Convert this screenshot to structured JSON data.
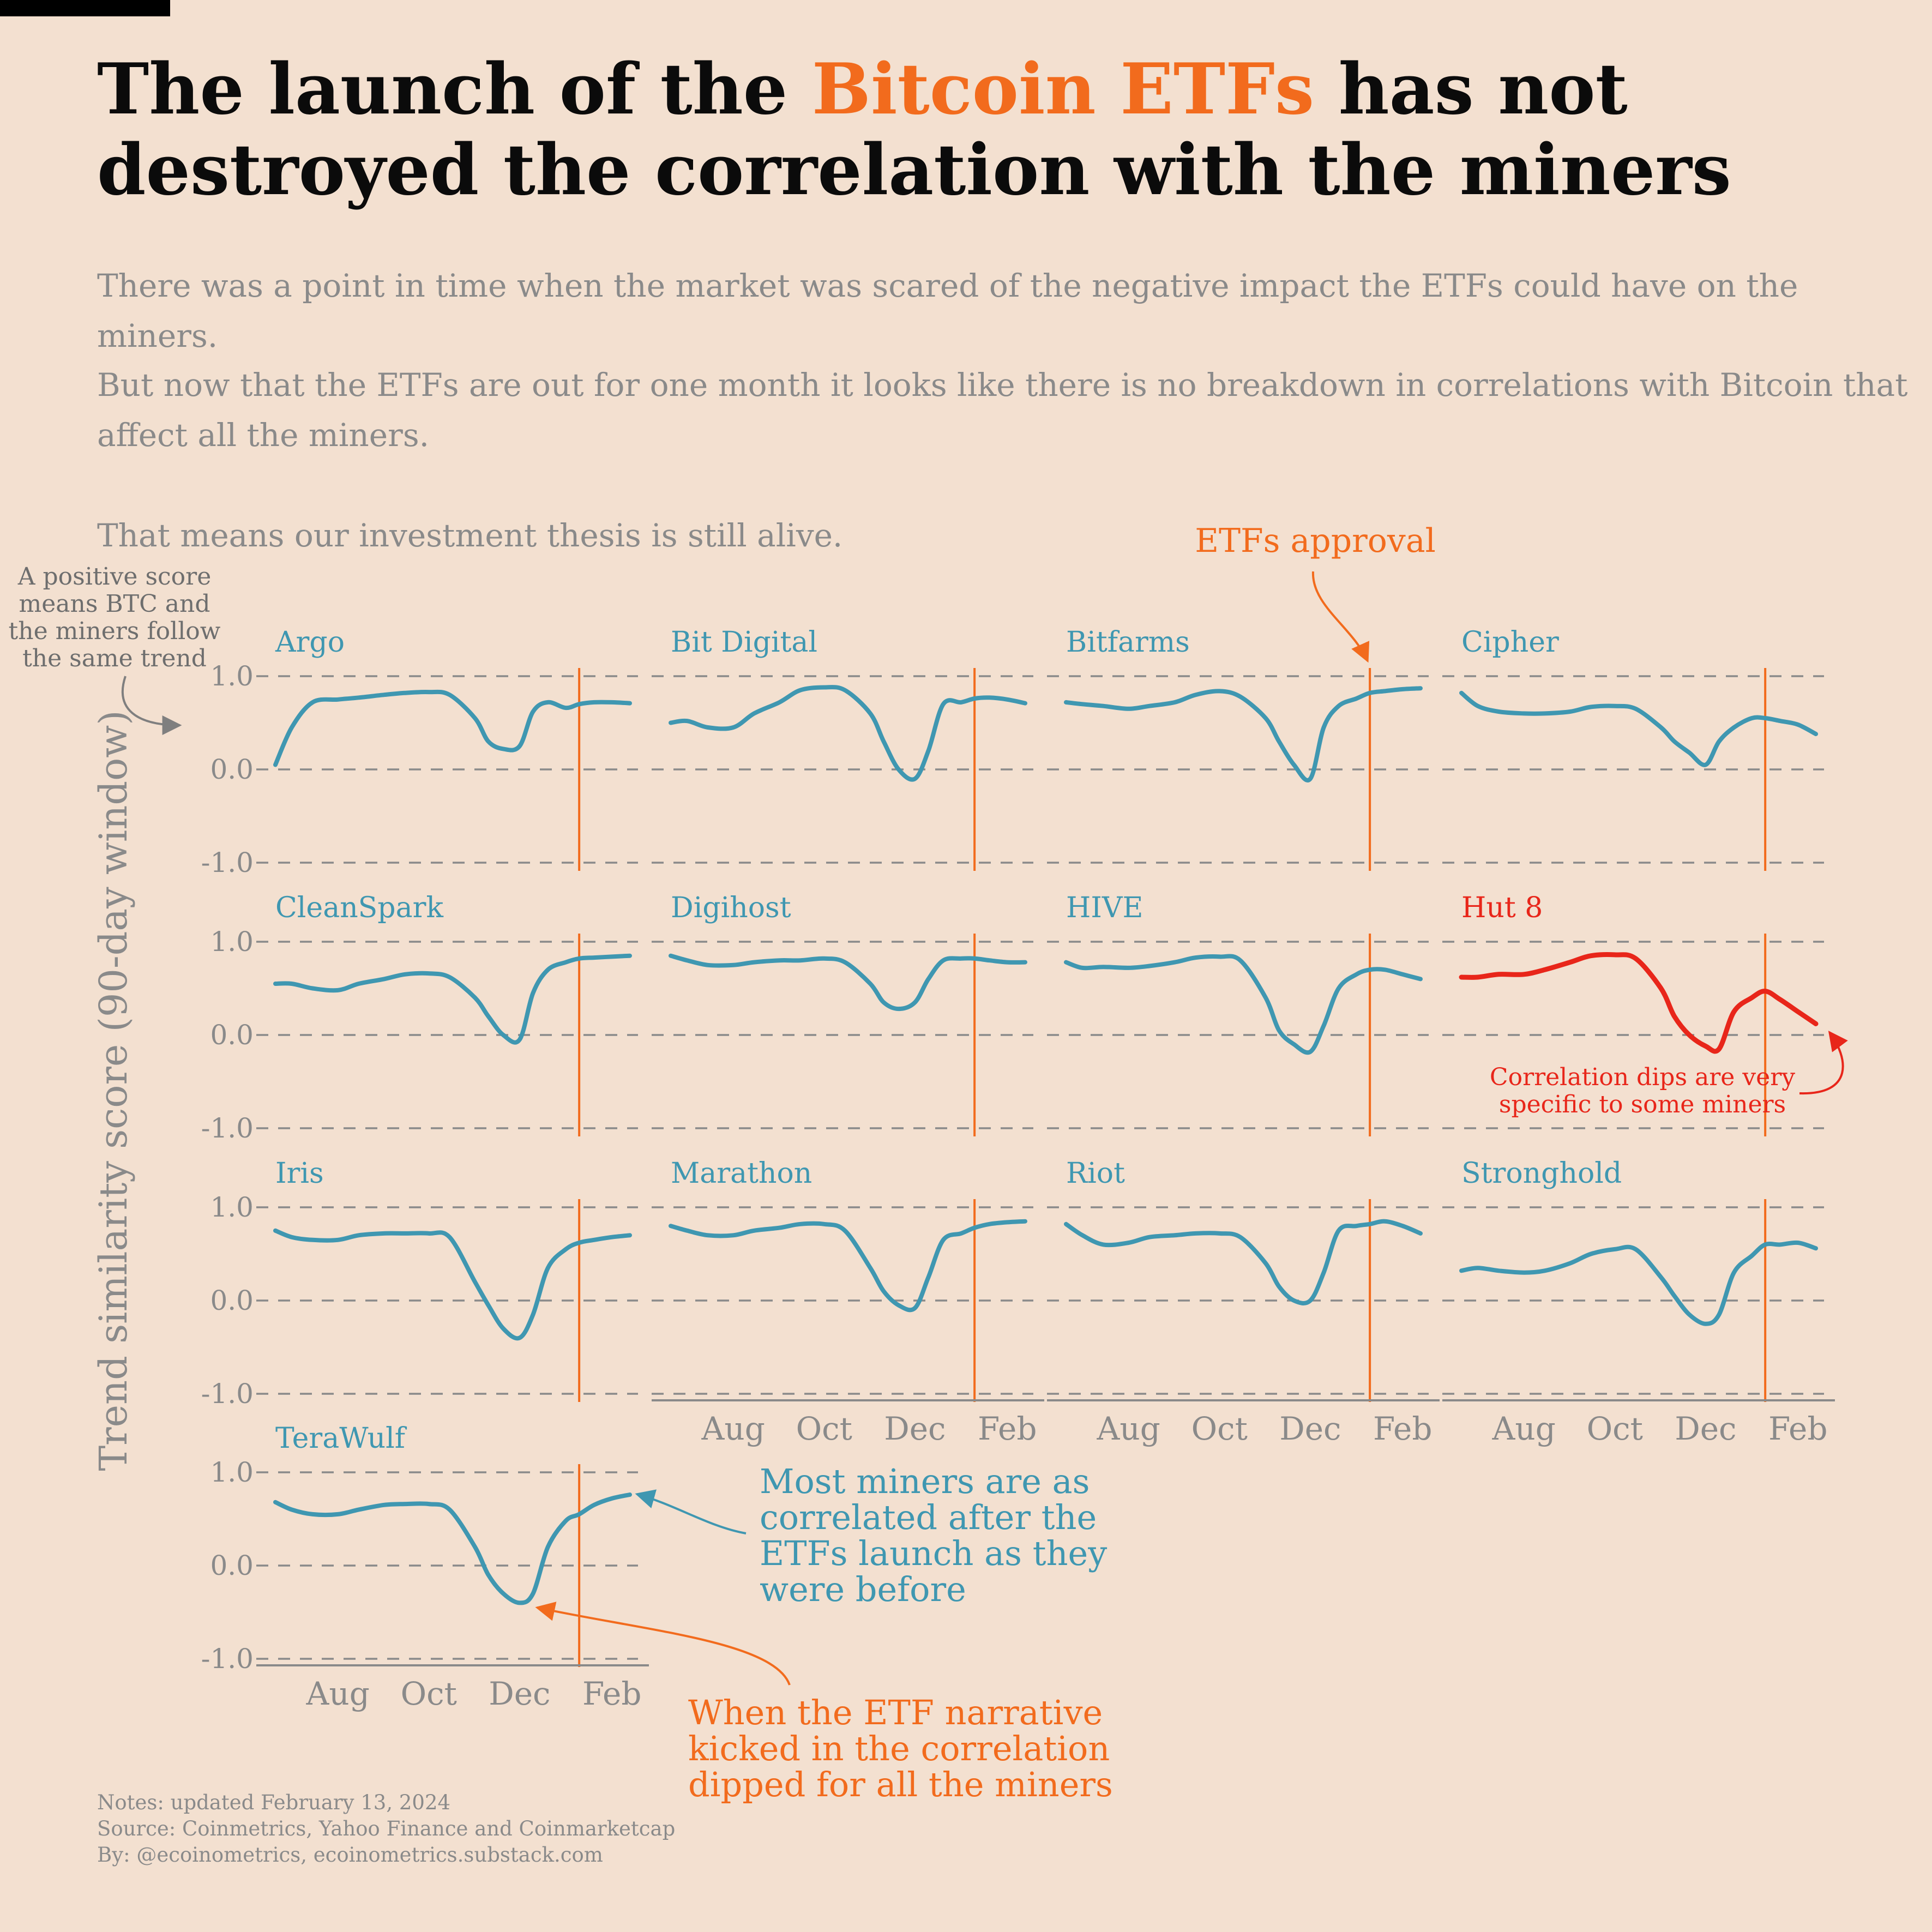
{
  "title": {
    "before": "The launch of the ",
    "highlight": "Bitcoin ETFs",
    "after": " has not destroyed the correlation with the miners"
  },
  "subtitle": {
    "p1": "There was a point in time when the market was scared of the negative impact the ETFs could have on the miners.",
    "p2": "But now that the ETFs are out for one month it looks like there is no breakdown in correlations with Bitcoin that affect all the miners.",
    "p3": "That means our investment thesis is still alive."
  },
  "notes": {
    "line1": "Notes: updated February 13, 2024",
    "line2": "Source: Coinmetrics, Yahoo Finance and Coinmarketcap",
    "line3": "By: @ecoinometrics, ecoinometrics.substack.com"
  },
  "colors": {
    "series": "#3f97b1",
    "highlight_series": "#e8261a",
    "accent": "#f26b1d",
    "grid": "#8a8a8a",
    "text_muted": "#8a8a8a",
    "background": "#f3e0d0"
  },
  "chart_data": {
    "type": "line",
    "layout": "small-multiples",
    "ylabel": "Trend similarity score (90-day window)",
    "ylim": [
      -1.0,
      1.0
    ],
    "yticks": [
      -1.0,
      0.0,
      1.0
    ],
    "ytick_labels": [
      "-1.0",
      "0.0",
      "1.0"
    ],
    "xlim": [
      "2023-06-20",
      "2024-02-13"
    ],
    "xticks": [
      "2023-08-01",
      "2023-10-01",
      "2023-12-01",
      "2024-02-01"
    ],
    "xtick_labels": [
      "Aug",
      "Oct",
      "Dec",
      "Feb"
    ],
    "grid": true,
    "event_marker": {
      "date": "2024-01-10",
      "label": "ETFs approval"
    },
    "x": [
      "2023-06-20",
      "2023-07-01",
      "2023-07-15",
      "2023-08-01",
      "2023-08-15",
      "2023-09-01",
      "2023-09-15",
      "2023-10-01",
      "2023-10-15",
      "2023-11-01",
      "2023-11-10",
      "2023-11-20",
      "2023-12-01",
      "2023-12-10",
      "2023-12-20",
      "2024-01-01",
      "2024-01-10",
      "2024-01-20",
      "2024-02-01",
      "2024-02-13"
    ],
    "series": [
      {
        "name": "Argo",
        "values": [
          0.05,
          0.45,
          0.72,
          0.75,
          0.77,
          0.8,
          0.82,
          0.83,
          0.8,
          0.55,
          0.3,
          0.22,
          0.25,
          0.62,
          0.72,
          0.66,
          0.7,
          0.72,
          0.72,
          0.71
        ]
      },
      {
        "name": "Bit Digital",
        "values": [
          0.5,
          0.52,
          0.45,
          0.45,
          0.6,
          0.72,
          0.85,
          0.88,
          0.85,
          0.6,
          0.3,
          0.0,
          -0.1,
          0.2,
          0.7,
          0.72,
          0.76,
          0.77,
          0.75,
          0.71
        ]
      },
      {
        "name": "Bitfarms",
        "values": [
          0.72,
          0.7,
          0.68,
          0.65,
          0.68,
          0.72,
          0.8,
          0.84,
          0.78,
          0.55,
          0.3,
          0.05,
          -0.1,
          0.45,
          0.68,
          0.76,
          0.82,
          0.84,
          0.86,
          0.87
        ]
      },
      {
        "name": "Cipher",
        "values": [
          0.82,
          0.68,
          0.62,
          0.6,
          0.6,
          0.62,
          0.67,
          0.68,
          0.65,
          0.45,
          0.3,
          0.18,
          0.05,
          0.3,
          0.45,
          0.55,
          0.55,
          0.52,
          0.48,
          0.38
        ]
      },
      {
        "name": "CleanSpark",
        "values": [
          0.55,
          0.55,
          0.5,
          0.48,
          0.55,
          0.6,
          0.65,
          0.66,
          0.62,
          0.4,
          0.2,
          0.0,
          -0.05,
          0.45,
          0.7,
          0.78,
          0.82,
          0.83,
          0.84,
          0.85
        ]
      },
      {
        "name": "Digihost",
        "values": [
          0.85,
          0.8,
          0.75,
          0.75,
          0.78,
          0.8,
          0.8,
          0.82,
          0.78,
          0.55,
          0.35,
          0.28,
          0.35,
          0.6,
          0.8,
          0.82,
          0.82,
          0.8,
          0.78,
          0.78
        ]
      },
      {
        "name": "HIVE",
        "values": [
          0.78,
          0.72,
          0.73,
          0.72,
          0.74,
          0.78,
          0.83,
          0.84,
          0.8,
          0.4,
          0.05,
          -0.1,
          -0.18,
          0.1,
          0.5,
          0.65,
          0.7,
          0.7,
          0.65,
          0.6
        ]
      },
      {
        "name": "Hut 8",
        "values": [
          0.62,
          0.62,
          0.65,
          0.65,
          0.7,
          0.78,
          0.85,
          0.86,
          0.82,
          0.5,
          0.2,
          0.0,
          -0.12,
          -0.15,
          0.25,
          0.4,
          0.47,
          0.38,
          0.25,
          0.12
        ]
      },
      {
        "name": "Iris",
        "values": [
          0.75,
          0.68,
          0.65,
          0.65,
          0.7,
          0.72,
          0.72,
          0.72,
          0.68,
          0.2,
          -0.05,
          -0.3,
          -0.4,
          -0.15,
          0.35,
          0.55,
          0.62,
          0.65,
          0.68,
          0.7
        ]
      },
      {
        "name": "Marathon",
        "values": [
          0.8,
          0.75,
          0.7,
          0.7,
          0.75,
          0.78,
          0.82,
          0.82,
          0.75,
          0.35,
          0.1,
          -0.05,
          -0.08,
          0.25,
          0.65,
          0.72,
          0.78,
          0.82,
          0.84,
          0.85
        ]
      },
      {
        "name": "Riot",
        "values": [
          0.82,
          0.7,
          0.6,
          0.62,
          0.68,
          0.7,
          0.72,
          0.72,
          0.68,
          0.4,
          0.15,
          0.0,
          0.0,
          0.3,
          0.75,
          0.8,
          0.82,
          0.85,
          0.8,
          0.72
        ]
      },
      {
        "name": "Stronghold",
        "values": [
          0.32,
          0.35,
          0.32,
          0.3,
          0.32,
          0.4,
          0.5,
          0.55,
          0.55,
          0.25,
          0.05,
          -0.15,
          -0.25,
          -0.15,
          0.3,
          0.48,
          0.6,
          0.6,
          0.62,
          0.56
        ]
      },
      {
        "name": "TeraWulf",
        "values": [
          0.68,
          0.6,
          0.55,
          0.55,
          0.6,
          0.65,
          0.66,
          0.66,
          0.6,
          0.2,
          -0.1,
          -0.3,
          -0.4,
          -0.3,
          0.2,
          0.48,
          0.55,
          0.65,
          0.72,
          0.76
        ]
      }
    ],
    "highlight_series": "Hut 8",
    "annotations": [
      {
        "text": "A positive score means BTC and the miners follow the same trend",
        "lines": [
          "A positive score",
          "means BTC and",
          "the miners follow",
          "the same trend"
        ]
      },
      {
        "text": "ETFs approval"
      },
      {
        "text": "Correlation dips are very specific to some miners",
        "lines": [
          "Correlation dips are very",
          "specific to some miners"
        ]
      },
      {
        "text": "Most miners are as correlated after the ETFs launch as they were before",
        "lines": [
          "Most miners are as",
          "correlated after the",
          "ETFs launch as they",
          "were before"
        ]
      },
      {
        "text": "When the ETF narrative kicked in the correlation dipped for all the miners",
        "lines": [
          "When the ETF narrative",
          "kicked in the correlation",
          "dipped for all the miners"
        ]
      }
    ]
  }
}
